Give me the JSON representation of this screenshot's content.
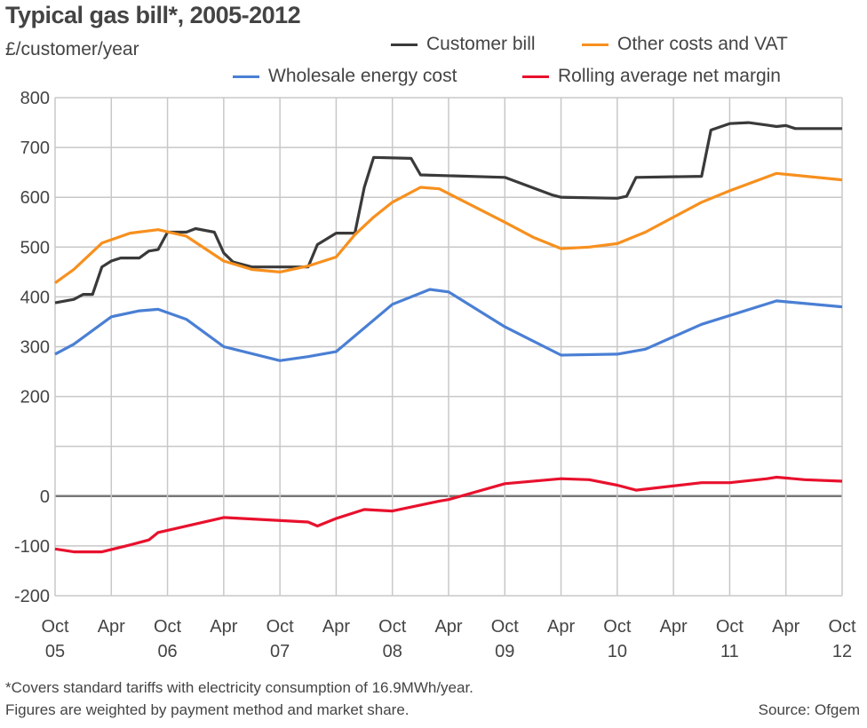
{
  "title": "Typical gas bill*, 2005-2012",
  "unit_label": "£/customer/year",
  "footnote_1": "*Covers standard tariffs with electricity consumption of 16.9MWh/year.",
  "footnote_2": "Figures are weighted by payment method and market share.",
  "source": "Source: Ofgem",
  "chart_data": {
    "type": "line",
    "title": "Typical gas bill*, 2005-2012",
    "ylabel": "£/customer/year",
    "ylim": [
      -200,
      800
    ],
    "yticks": [
      800,
      700,
      600,
      500,
      400,
      300,
      200,
      0,
      -100,
      -200
    ],
    "ytick_labels": [
      "800",
      "700",
      "600",
      "500",
      "400",
      "300",
      "200",
      "0",
      "-100",
      "-200"
    ],
    "xlim": [
      "2005-10",
      "2012-10"
    ],
    "xticks": [
      {
        "date": "2005-10",
        "month": "Oct",
        "year": "05"
      },
      {
        "date": "2006-04",
        "month": "Apr",
        "year": ""
      },
      {
        "date": "2006-10",
        "month": "Oct",
        "year": "06"
      },
      {
        "date": "2007-04",
        "month": "Apr",
        "year": ""
      },
      {
        "date": "2007-10",
        "month": "Oct",
        "year": "07"
      },
      {
        "date": "2008-04",
        "month": "Apr",
        "year": ""
      },
      {
        "date": "2008-10",
        "month": "Oct",
        "year": "08"
      },
      {
        "date": "2009-04",
        "month": "Apr",
        "year": ""
      },
      {
        "date": "2009-10",
        "month": "Oct",
        "year": "09"
      },
      {
        "date": "2010-04",
        "month": "Apr",
        "year": ""
      },
      {
        "date": "2010-10",
        "month": "Oct",
        "year": "10"
      },
      {
        "date": "2011-04",
        "month": "Apr",
        "year": ""
      },
      {
        "date": "2011-10",
        "month": "Oct",
        "year": "11"
      },
      {
        "date": "2012-04",
        "month": "Apr",
        "year": ""
      },
      {
        "date": "2012-10",
        "month": "Oct",
        "year": "12"
      }
    ],
    "grid": true,
    "legend_placement": "top-right",
    "series": [
      {
        "name": "Customer bill",
        "color": "#3a3a3a",
        "points": [
          [
            "2005-10",
            388
          ],
          [
            "2005-12",
            395
          ],
          [
            "2006-01",
            405
          ],
          [
            "2006-02",
            405
          ],
          [
            "2006-03",
            460
          ],
          [
            "2006-04",
            472
          ],
          [
            "2006-05",
            478
          ],
          [
            "2006-07",
            478
          ],
          [
            "2006-08",
            492
          ],
          [
            "2006-09",
            495
          ],
          [
            "2006-10",
            530
          ],
          [
            "2006-12",
            530
          ],
          [
            "2007-01",
            537
          ],
          [
            "2007-03",
            530
          ],
          [
            "2007-04",
            488
          ],
          [
            "2007-05",
            470
          ],
          [
            "2007-06",
            465
          ],
          [
            "2007-07",
            460
          ],
          [
            "2007-10",
            460
          ],
          [
            "2008-01",
            460
          ],
          [
            "2008-02",
            505
          ],
          [
            "2008-04",
            528
          ],
          [
            "2008-06",
            528
          ],
          [
            "2008-07",
            620
          ],
          [
            "2008-08",
            680
          ],
          [
            "2008-12",
            678
          ],
          [
            "2009-01",
            645
          ],
          [
            "2009-10",
            640
          ],
          [
            "2010-03",
            605
          ],
          [
            "2010-04",
            600
          ],
          [
            "2010-10",
            598
          ],
          [
            "2010-11",
            602
          ],
          [
            "2010-12",
            640
          ],
          [
            "2011-07",
            642
          ],
          [
            "2011-08",
            735
          ],
          [
            "2011-10",
            748
          ],
          [
            "2011-12",
            750
          ],
          [
            "2012-02",
            745
          ],
          [
            "2012-03",
            742
          ],
          [
            "2012-04",
            744
          ],
          [
            "2012-05",
            738
          ],
          [
            "2012-10",
            738
          ]
        ]
      },
      {
        "name": "Other costs and VAT",
        "color": "#f7901e",
        "points": [
          [
            "2005-10",
            428
          ],
          [
            "2005-12",
            455
          ],
          [
            "2006-03",
            508
          ],
          [
            "2006-06",
            528
          ],
          [
            "2006-09",
            535
          ],
          [
            "2006-12",
            522
          ],
          [
            "2007-04",
            472
          ],
          [
            "2007-07",
            455
          ],
          [
            "2007-10",
            450
          ],
          [
            "2008-01",
            462
          ],
          [
            "2008-04",
            480
          ],
          [
            "2008-06",
            525
          ],
          [
            "2008-08",
            560
          ],
          [
            "2008-10",
            590
          ],
          [
            "2009-01",
            620
          ],
          [
            "2009-03",
            617
          ],
          [
            "2009-10",
            550
          ],
          [
            "2010-01",
            520
          ],
          [
            "2010-04",
            497
          ],
          [
            "2010-07",
            500
          ],
          [
            "2010-10",
            507
          ],
          [
            "2011-01",
            530
          ],
          [
            "2011-04",
            560
          ],
          [
            "2011-07",
            590
          ],
          [
            "2011-10",
            613
          ],
          [
            "2012-03",
            648
          ],
          [
            "2012-10",
            635
          ]
        ]
      },
      {
        "name": "Wholesale energy cost",
        "color": "#4a7fd4",
        "points": [
          [
            "2005-10",
            285
          ],
          [
            "2005-12",
            305
          ],
          [
            "2006-04",
            360
          ],
          [
            "2006-07",
            372
          ],
          [
            "2006-09",
            375
          ],
          [
            "2006-12",
            355
          ],
          [
            "2007-04",
            300
          ],
          [
            "2007-10",
            272
          ],
          [
            "2008-01",
            280
          ],
          [
            "2008-04",
            290
          ],
          [
            "2008-10",
            385
          ],
          [
            "2009-02",
            415
          ],
          [
            "2009-04",
            410
          ],
          [
            "2009-10",
            340
          ],
          [
            "2010-04",
            283
          ],
          [
            "2010-10",
            285
          ],
          [
            "2011-01",
            295
          ],
          [
            "2011-07",
            345
          ],
          [
            "2012-03",
            392
          ],
          [
            "2012-10",
            380
          ]
        ]
      },
      {
        "name": "Rolling average net margin",
        "color": "#e8112d",
        "points": [
          [
            "2005-10",
            -106
          ],
          [
            "2005-12",
            -112
          ],
          [
            "2006-03",
            -112
          ],
          [
            "2006-06",
            -98
          ],
          [
            "2006-08",
            -88
          ],
          [
            "2006-09",
            -73
          ],
          [
            "2007-04",
            -43
          ],
          [
            "2008-01",
            -52
          ],
          [
            "2008-02",
            -60
          ],
          [
            "2008-04",
            -45
          ],
          [
            "2008-07",
            -27
          ],
          [
            "2008-10",
            -30
          ],
          [
            "2009-03",
            -10
          ],
          [
            "2009-04",
            -7
          ],
          [
            "2009-10",
            25
          ],
          [
            "2010-04",
            35
          ],
          [
            "2010-07",
            33
          ],
          [
            "2010-10",
            22
          ],
          [
            "2010-12",
            12
          ],
          [
            "2011-07",
            27
          ],
          [
            "2011-10",
            27
          ],
          [
            "2012-02",
            35
          ],
          [
            "2012-03",
            38
          ],
          [
            "2012-06",
            33
          ],
          [
            "2012-10",
            30
          ]
        ]
      }
    ]
  }
}
